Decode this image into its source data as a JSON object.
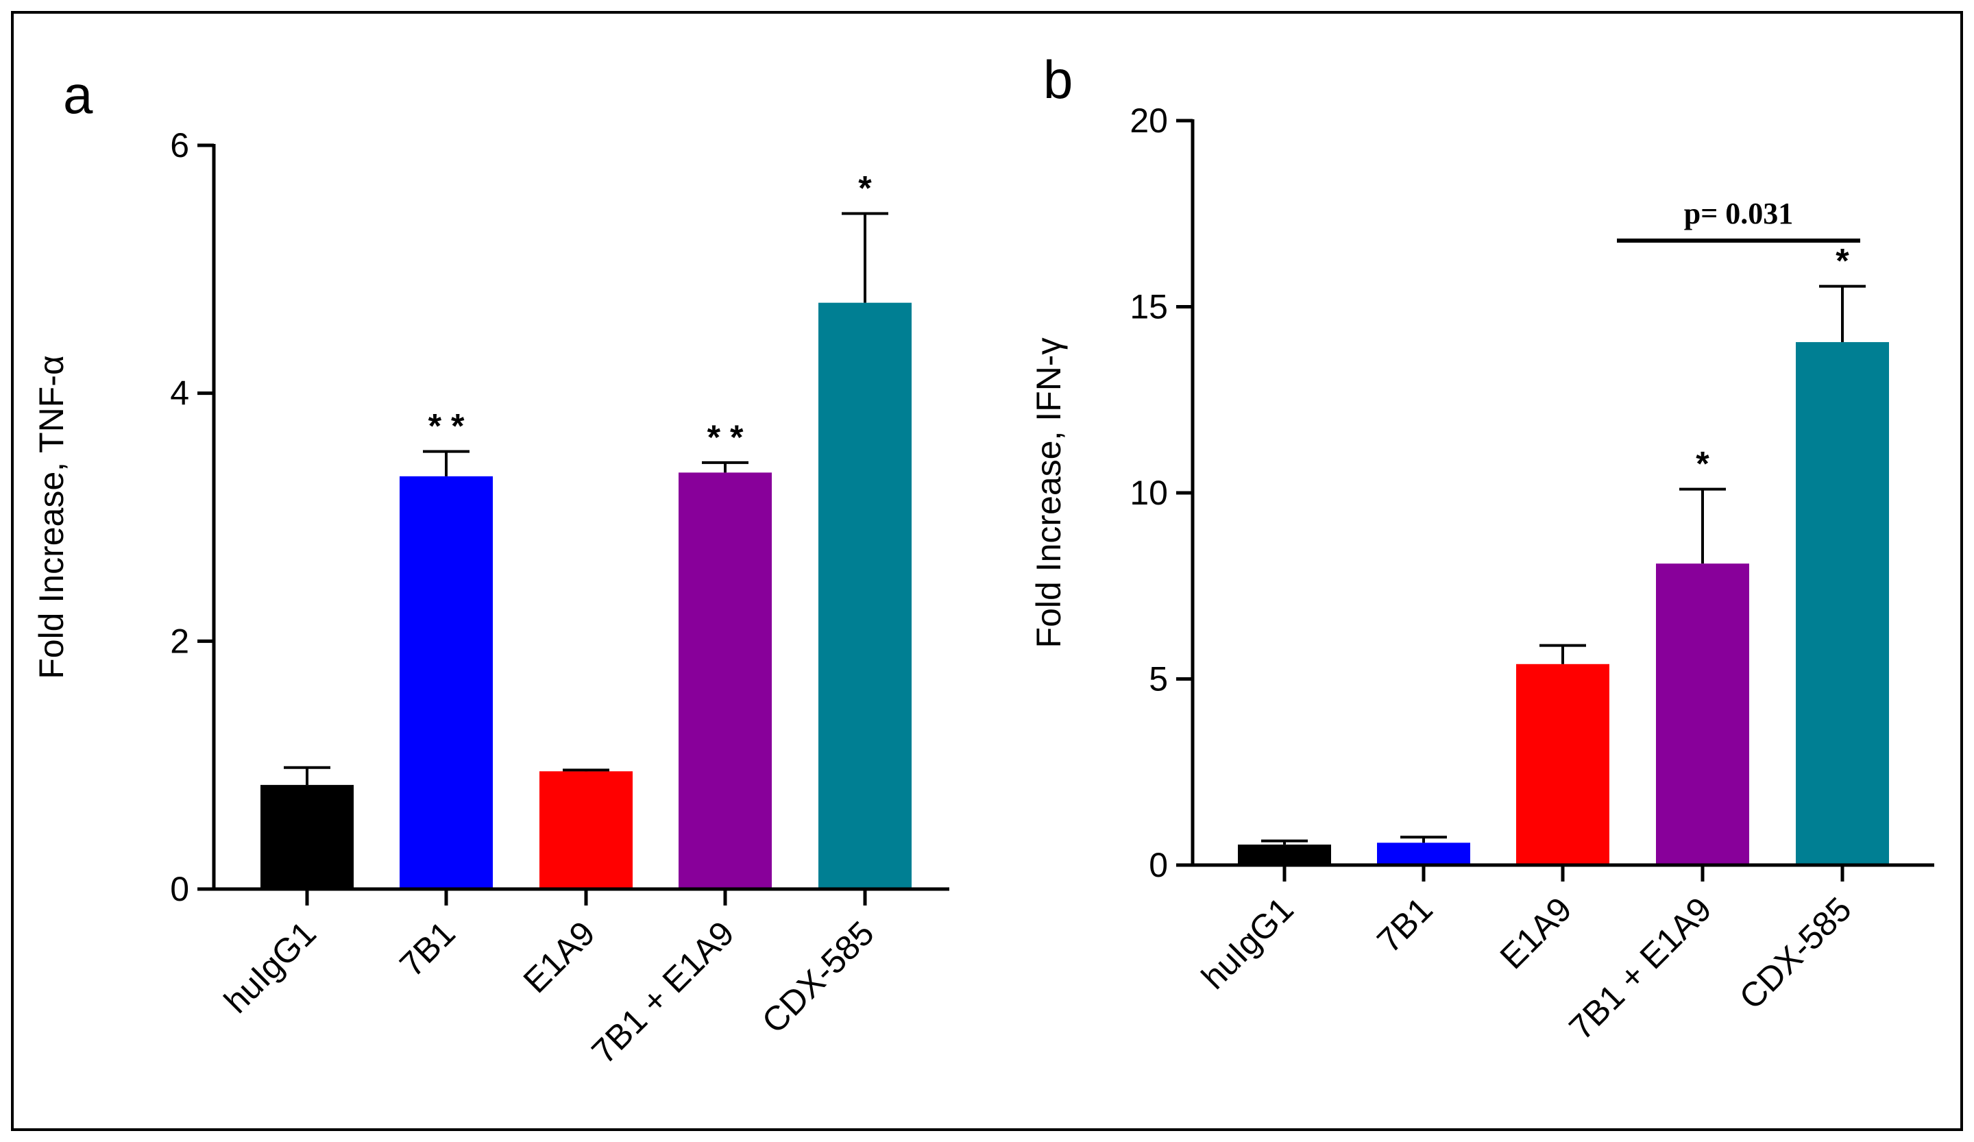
{
  "chart_data": [
    {
      "type": "bar",
      "panel_label": "a",
      "title": "",
      "xlabel": "",
      "ylabel": "Fold Increase, TNF-α",
      "categories": [
        "huIgG1",
        "7B1",
        "E1A9",
        "7B1 + E1A9",
        "CDX-585"
      ],
      "values": [
        0.84,
        3.33,
        0.95,
        3.36,
        4.73
      ],
      "errors": [
        0.14,
        0.2,
        0.01,
        0.08,
        0.72
      ],
      "colors": [
        "#000000",
        "#0000ff",
        "#ff0000",
        "#88009a",
        "#007f93"
      ],
      "significance": [
        "",
        "* *",
        "",
        "* *",
        "*"
      ],
      "yticks": [
        0,
        2,
        4,
        6
      ],
      "ytick_labels": [
        "0",
        "2",
        "4",
        "6"
      ],
      "ylim": [
        0,
        6
      ],
      "grid": false
    },
    {
      "type": "bar",
      "panel_label": "b",
      "title": "",
      "xlabel": "",
      "ylabel": "Fold Increase, IFN-γ",
      "categories": [
        "huIgG1",
        "7B1",
        "E1A9",
        "7B1 + E1A9",
        "CDX-585"
      ],
      "values": [
        0.55,
        0.6,
        5.4,
        8.1,
        14.05
      ],
      "errors": [
        0.1,
        0.15,
        0.5,
        2.0,
        1.5
      ],
      "colors": [
        "#000000",
        "#0000ff",
        "#ff0000",
        "#88009a",
        "#007f93"
      ],
      "significance": [
        "",
        "",
        "",
        "*",
        "*"
      ],
      "yticks": [
        0,
        5,
        10,
        15,
        20
      ],
      "ytick_labels": [
        "0",
        "5",
        "10",
        "15",
        "20"
      ],
      "ylim": [
        0,
        20
      ],
      "grid": false,
      "comparison": {
        "from_category": "7B1 + E1A9",
        "to_category": "CDX-585",
        "label": "p= 0.031"
      }
    }
  ]
}
